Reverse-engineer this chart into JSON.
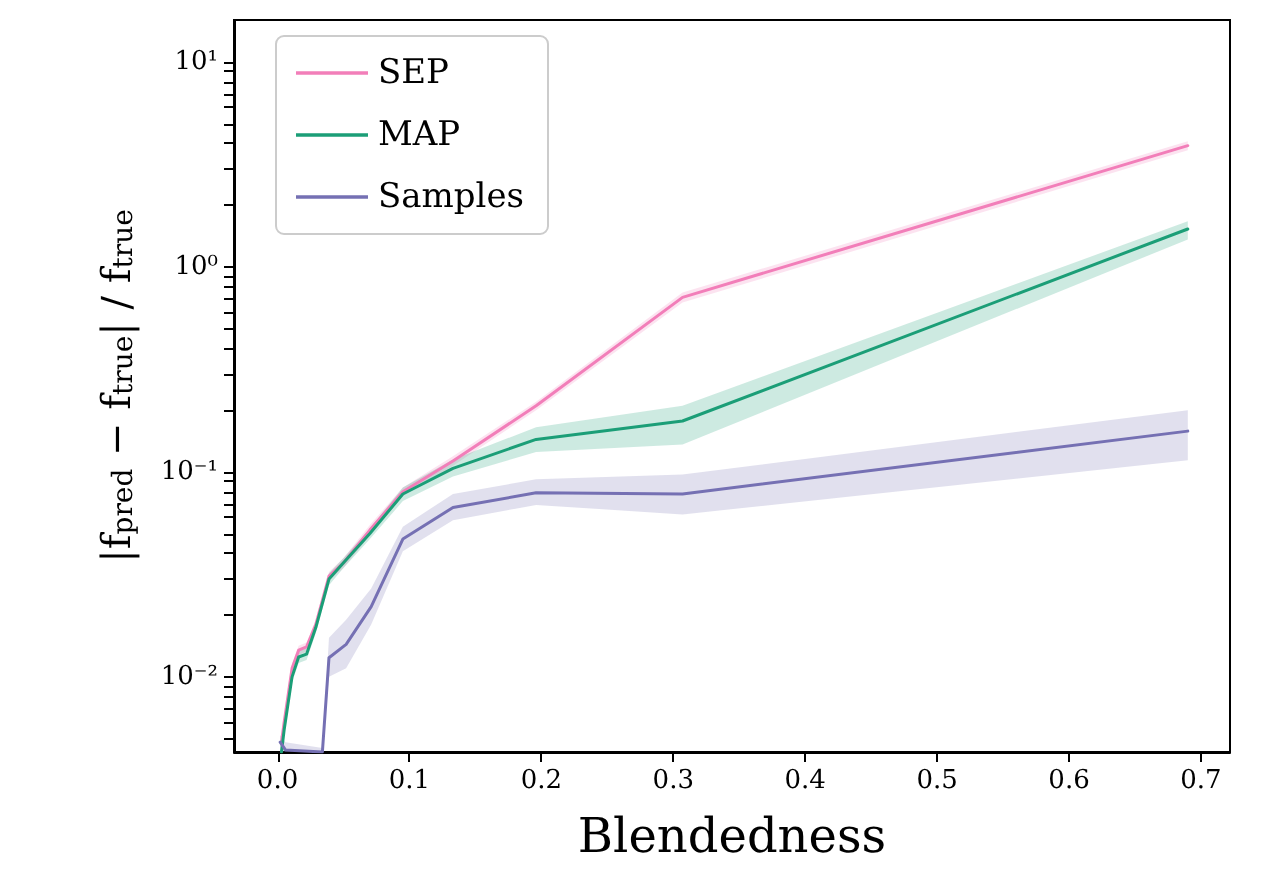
{
  "chart_data": {
    "type": "line",
    "xlabel": "Blendedness",
    "ylabel": "|f$_{pred}$ − f$_{true}$| / f$_{true}$",
    "log": "y",
    "grid": false,
    "legend": "top left",
    "marker": "none",
    "line_style": "solid",
    "xlim": [
      -0.033,
      0.722
    ],
    "ylim": [
      0.0043,
      16
    ],
    "xticks": [
      {
        "value": 0,
        "label": "0.0"
      },
      {
        "value": 0.1,
        "label": "0.1"
      },
      {
        "value": 0.2,
        "label": "0.2"
      },
      {
        "value": 0.3,
        "label": "0.3"
      },
      {
        "value": 0.4,
        "label": "0.4"
      },
      {
        "value": 0.5,
        "label": "0.5"
      },
      {
        "value": 0.6,
        "label": "0.6"
      },
      {
        "value": 0.7,
        "label": "0.7"
      }
    ],
    "yticks": [
      {
        "value": 0.005,
        "label": null
      },
      {
        "value": 0.006,
        "label": null
      },
      {
        "value": 0.007,
        "label": null
      },
      {
        "value": 0.008,
        "label": null
      },
      {
        "value": 0.009,
        "label": null
      },
      {
        "value": 0.01,
        "label": "10⁻²"
      },
      {
        "value": 0.02,
        "label": null
      },
      {
        "value": 0.03,
        "label": null
      },
      {
        "value": 0.04,
        "label": null
      },
      {
        "value": 0.05,
        "label": null
      },
      {
        "value": 0.06,
        "label": null
      },
      {
        "value": 0.07,
        "label": null
      },
      {
        "value": 0.08,
        "label": null
      },
      {
        "value": 0.09,
        "label": null
      },
      {
        "value": 0.1,
        "label": "10⁻¹"
      },
      {
        "value": 0.2,
        "label": null
      },
      {
        "value": 0.3,
        "label": null
      },
      {
        "value": 0.4,
        "label": null
      },
      {
        "value": 0.5,
        "label": null
      },
      {
        "value": 0.6,
        "label": null
      },
      {
        "value": 0.7,
        "label": null
      },
      {
        "value": 0.8,
        "label": null
      },
      {
        "value": 0.9,
        "label": null
      },
      {
        "value": 1,
        "label": "10⁰"
      },
      {
        "value": 2,
        "label": null
      },
      {
        "value": 3,
        "label": null
      },
      {
        "value": 4,
        "label": null
      },
      {
        "value": 5,
        "label": null
      },
      {
        "value": 6,
        "label": null
      },
      {
        "value": 7,
        "label": null
      },
      {
        "value": 8,
        "label": null
      },
      {
        "value": 9,
        "label": null
      },
      {
        "value": 10,
        "label": "10¹"
      }
    ],
    "series": [
      {
        "name": "SEP",
        "color": "#f27eb9",
        "x": [
          0.003,
          0.005,
          0.011,
          0.016,
          0.022,
          0.029,
          0.039,
          0.05,
          0.07,
          0.095,
          0.133,
          0.196,
          0.307,
          0.69
        ],
        "values": [
          0.0048,
          0.006,
          0.011,
          0.0135,
          0.014,
          0.018,
          0.031,
          0.036,
          0.052,
          0.08,
          0.113,
          0.21,
          0.71,
          3.9
        ],
        "lower": [
          0.0045,
          0.0057,
          0.0105,
          0.0128,
          0.0133,
          0.017,
          0.0295,
          0.034,
          0.049,
          0.076,
          0.107,
          0.2,
          0.67,
          3.7
        ],
        "upper": [
          0.0051,
          0.0063,
          0.0116,
          0.0142,
          0.0147,
          0.019,
          0.0325,
          0.038,
          0.055,
          0.084,
          0.119,
          0.22,
          0.75,
          4.1
        ]
      },
      {
        "name": "MAP",
        "color": "#1b9e77",
        "x": [
          0.003,
          0.005,
          0.011,
          0.016,
          0.022,
          0.029,
          0.039,
          0.05,
          0.07,
          0.095,
          0.133,
          0.196,
          0.307,
          0.69
        ],
        "values": [
          0.0043,
          0.0055,
          0.01,
          0.0125,
          0.0129,
          0.0174,
          0.03,
          0.036,
          0.05,
          0.078,
          0.104,
          0.144,
          0.177,
          1.53
        ],
        "lower": [
          0.0043,
          0.0051,
          0.0094,
          0.0117,
          0.0121,
          0.0163,
          0.028,
          0.034,
          0.047,
          0.072,
          0.095,
          0.125,
          0.136,
          1.36
        ],
        "upper": [
          0.0047,
          0.0059,
          0.0107,
          0.0134,
          0.0138,
          0.0185,
          0.032,
          0.038,
          0.053,
          0.084,
          0.115,
          0.165,
          0.21,
          1.67
        ]
      },
      {
        "name": "Samples",
        "color": "#7570b3",
        "x": [
          0.002,
          0.006,
          0.034,
          0.039,
          0.052,
          0.071,
          0.095,
          0.133,
          0.196,
          0.307,
          0.69
        ],
        "values": [
          0.0048,
          0.0044,
          0.0043,
          0.0124,
          0.0144,
          0.022,
          0.047,
          0.067,
          0.079,
          0.078,
          0.158
        ],
        "lower": [
          0.0043,
          0.0043,
          0.0043,
          0.01,
          0.011,
          0.018,
          0.041,
          0.058,
          0.069,
          0.062,
          0.114
        ],
        "upper": [
          0.0052,
          0.0048,
          0.0045,
          0.0155,
          0.019,
          0.027,
          0.054,
          0.078,
          0.092,
          0.097,
          0.2
        ]
      }
    ]
  }
}
